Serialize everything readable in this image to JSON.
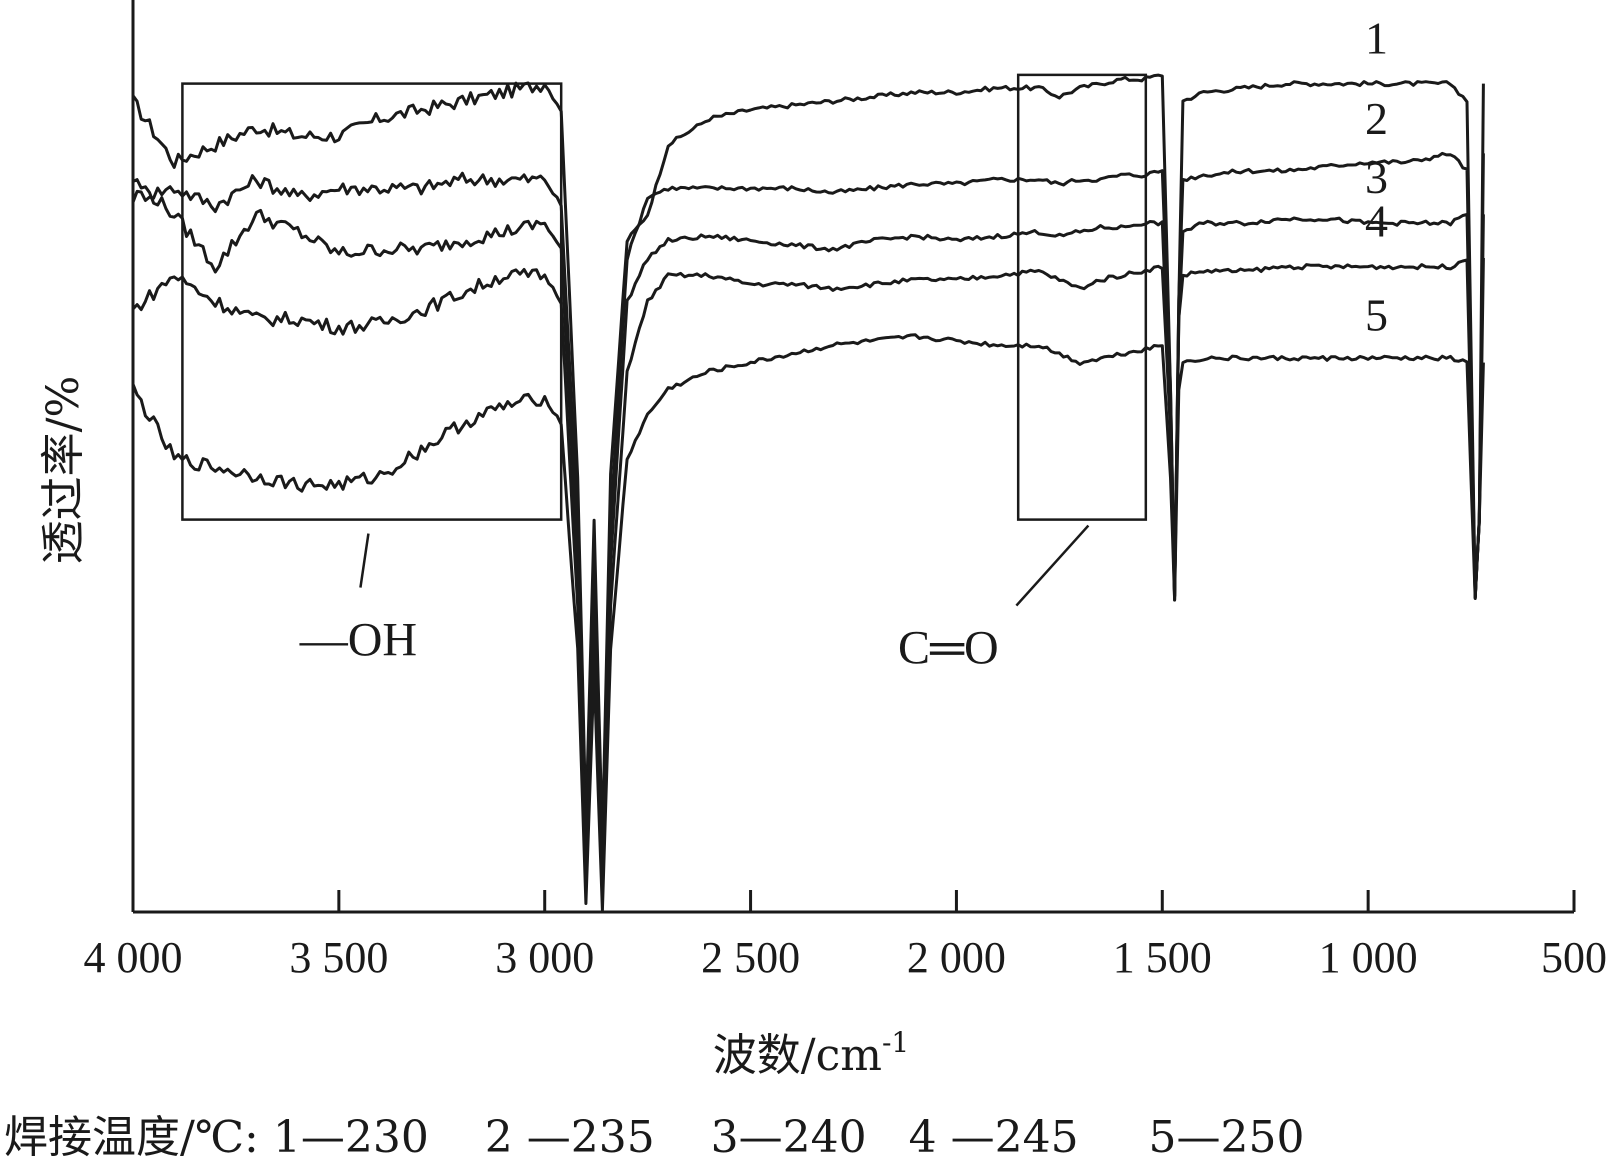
{
  "chart_data": {
    "type": "line",
    "title": "",
    "xlabel": "波数/cm",
    "xlabel_sup": "-1",
    "ylabel": "透过率/%",
    "xlim": [
      4000,
      500
    ],
    "x_reversed": true,
    "x_ticks": [
      4000,
      3500,
      3000,
      2500,
      2000,
      1500,
      1000,
      500
    ],
    "x_tick_labels": [
      "4 000",
      "3 500",
      "3 000",
      "2 500",
      "2 000",
      "1 500",
      "1 000",
      "500"
    ],
    "y_ticks_shown": false,
    "ylim": [
      0,
      100
    ],
    "grid": false,
    "footer_note": "焊接温度/℃: 1—230    2 —235    3—240   4 —245     5—250",
    "annotations": [
      {
        "label": "—OH",
        "x_range": [
          3880,
          2960
        ],
        "y_range": [
          45,
          95
        ]
      },
      {
        "label": "C═O",
        "x_range": [
          1850,
          1540
        ],
        "y_range": [
          45,
          96
        ]
      }
    ],
    "series": [
      {
        "name": "1",
        "x": [
          4000,
          3900,
          3800,
          3700,
          3600,
          3500,
          3400,
          3300,
          3200,
          3100,
          3000,
          2960,
          2920,
          2900,
          2880,
          2860,
          2840,
          2800,
          2750,
          2700,
          2600,
          2500,
          2400,
          2300,
          2200,
          2100,
          2000,
          1900,
          1800,
          1750,
          1700,
          1650,
          1600,
          1550,
          1500,
          1480,
          1470,
          1460,
          1450,
          1400,
          1300,
          1200,
          1100,
          1000,
          900,
          800,
          760,
          740,
          730,
          720
        ],
        "y": [
          93,
          86,
          88,
          90,
          89,
          89,
          91,
          92,
          93,
          94,
          95,
          92,
          50,
          10,
          45,
          8,
          50,
          77,
          80,
          88,
          91,
          92,
          92.5,
          93,
          93.5,
          94,
          94,
          94.5,
          94.5,
          93.5,
          94.5,
          95,
          95.5,
          95.5,
          96,
          60,
          36,
          70,
          93,
          94,
          94.5,
          95,
          95,
          95,
          95,
          95,
          93,
          36,
          45,
          95
        ]
      },
      {
        "name": "2",
        "x": [
          4000,
          3900,
          3800,
          3700,
          3600,
          3500,
          3400,
          3300,
          3200,
          3100,
          3000,
          2960,
          2920,
          2900,
          2880,
          2860,
          2840,
          2800,
          2750,
          2700,
          2600,
          2500,
          2400,
          2300,
          2200,
          2100,
          2000,
          1900,
          1800,
          1750,
          1700,
          1650,
          1600,
          1550,
          1500,
          1480,
          1470,
          1460,
          1450,
          1400,
          1300,
          1200,
          1100,
          1000,
          900,
          800,
          760,
          740,
          730,
          720
        ],
        "y": [
          82,
          83,
          81,
          84,
          82,
          83,
          83,
          83,
          84,
          84,
          84,
          81,
          45,
          3,
          40,
          2,
          45,
          75,
          82,
          83,
          83,
          83,
          83,
          82.5,
          83,
          83.5,
          83.5,
          84,
          84,
          83.5,
          84,
          84,
          84.5,
          84.5,
          85,
          60,
          36,
          70,
          84,
          84.5,
          85,
          85,
          85.5,
          86,
          86,
          87,
          85,
          36,
          45,
          87
        ]
      },
      {
        "name": "3",
        "x": [
          4000,
          3900,
          3800,
          3700,
          3600,
          3500,
          3400,
          3300,
          3200,
          3100,
          3000,
          2960,
          2920,
          2900,
          2880,
          2860,
          2840,
          2800,
          2750,
          2700,
          2600,
          2500,
          2400,
          2300,
          2200,
          2100,
          2000,
          1900,
          1800,
          1750,
          1700,
          1650,
          1600,
          1550,
          1500,
          1480,
          1470,
          1460,
          1450,
          1400,
          1300,
          1200,
          1100,
          1000,
          900,
          800,
          760,
          740,
          730,
          720
        ],
        "y": [
          84,
          80,
          74,
          80,
          78,
          75.5,
          76,
          76,
          77,
          78,
          79,
          76,
          40,
          6,
          38,
          5,
          40,
          70,
          75,
          77,
          77.5,
          77,
          76.5,
          76,
          77,
          77.5,
          77,
          77.5,
          78,
          77.5,
          78,
          78.5,
          78.5,
          79,
          79,
          55,
          36,
          68,
          78,
          79,
          79,
          79.5,
          79.5,
          79,
          79,
          79,
          80,
          36,
          45,
          80
        ]
      },
      {
        "name": "4",
        "x": [
          4000,
          3900,
          3800,
          3700,
          3600,
          3500,
          3400,
          3300,
          3200,
          3100,
          3000,
          2960,
          2920,
          2900,
          2880,
          2860,
          2840,
          2800,
          2750,
          2700,
          2600,
          2500,
          2400,
          2300,
          2200,
          2100,
          2000,
          1900,
          1800,
          1750,
          1700,
          1650,
          1600,
          1550,
          1500,
          1480,
          1470,
          1460,
          1450,
          1400,
          1300,
          1200,
          1100,
          1000,
          900,
          800,
          760,
          740,
          730,
          720
        ],
        "y": [
          69,
          73,
          70,
          68,
          68,
          67,
          67.5,
          69,
          71,
          73,
          73,
          70,
          35,
          3,
          33,
          2,
          35,
          62,
          70,
          73,
          73,
          72,
          72,
          71.5,
          72,
          72.5,
          72.5,
          73,
          73.5,
          72.5,
          71.5,
          72.5,
          73,
          73.5,
          74,
          55,
          36,
          68,
          73,
          73.5,
          73.5,
          74,
          74,
          74,
          74,
          74,
          75,
          36,
          45,
          75
        ]
      },
      {
        "name": "5",
        "x": [
          4000,
          3900,
          3800,
          3700,
          3600,
          3500,
          3400,
          3300,
          3200,
          3100,
          3000,
          2960,
          2920,
          2900,
          2880,
          2860,
          2840,
          2800,
          2750,
          2700,
          2600,
          2500,
          2400,
          2300,
          2200,
          2100,
          2000,
          1900,
          1800,
          1750,
          1700,
          1650,
          1600,
          1550,
          1500,
          1480,
          1470,
          1460,
          1450,
          1400,
          1300,
          1200,
          1100,
          1000,
          900,
          800,
          760,
          740,
          730,
          720
        ],
        "y": [
          60,
          52,
          51,
          50,
          49,
          49,
          50,
          53,
          56,
          58,
          59,
          56,
          30,
          1,
          28,
          0,
          30,
          52,
          57,
          60,
          62,
          63,
          64,
          65,
          65.5,
          66,
          65.5,
          65,
          65,
          64,
          63,
          63.5,
          64,
          64.5,
          65,
          50,
          36,
          60,
          63,
          63.5,
          63.5,
          63.5,
          63.5,
          63.5,
          63.5,
          63.5,
          63,
          36,
          45,
          63
        ]
      }
    ]
  }
}
